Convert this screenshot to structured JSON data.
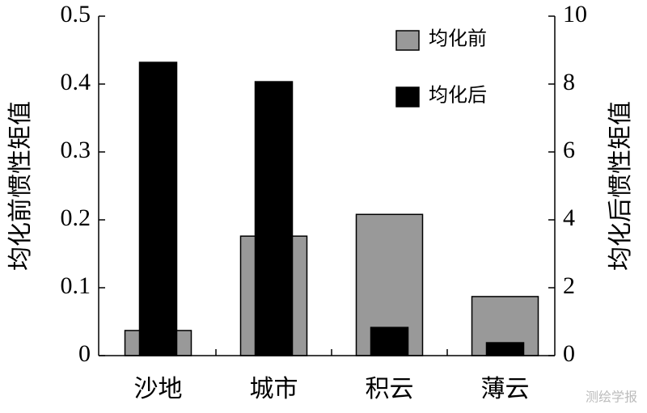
{
  "chart_data": {
    "type": "bar",
    "categories": [
      "沙地",
      "城市",
      "积云",
      "薄云"
    ],
    "y_label": "均化前惯性矩值",
    "y2_label": "均化后惯性矩值",
    "series": [
      {
        "name": "均化前",
        "color": "#999999",
        "values": [
          0.037,
          0.176,
          0.208,
          0.087
        ]
      },
      {
        "name": "均化后",
        "color": "#000000",
        "axis": "y2",
        "values": [
          8.64,
          8.07,
          0.83,
          0.38
        ]
      }
    ],
    "ylim": [
      0,
      0.5
    ],
    "yticks": [
      0,
      0.1,
      0.2,
      0.3,
      0.4,
      0.5
    ],
    "y2lim": [
      0,
      10
    ],
    "y2ticks": [
      0,
      2,
      4,
      6,
      8,
      10
    ],
    "legend": "upper-right",
    "watermark": "测绘学报"
  }
}
